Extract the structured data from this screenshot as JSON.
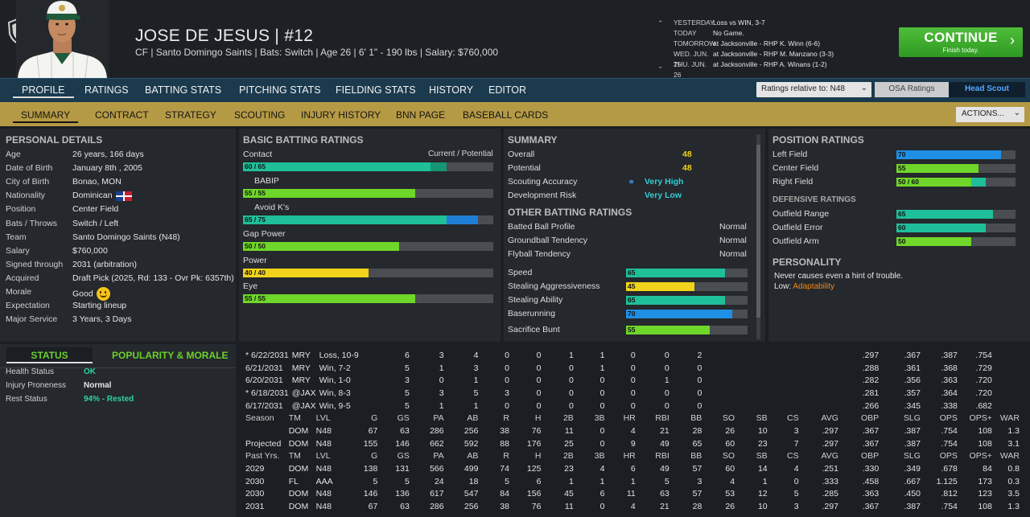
{
  "player": {
    "name": "JOSE DE JESUS",
    "sep": "|",
    "number": "#12",
    "subtitle": "CF | Santo Domingo Saints  |  Bats: Switch  |  Age 26  |  6' 1\" - 190 lbs  |  Salary: $760,000"
  },
  "schedule": [
    {
      "day": "YESTERDAY",
      "info": "Loss vs WIN, 3-7"
    },
    {
      "day": "TODAY",
      "info": "No Game."
    },
    {
      "day": "TOMORROW",
      "info": "at Jacksonville - RHP K. Winn (6-6)"
    },
    {
      "day": "WED. JUN. 25",
      "info": "at Jacksonville - RHP M. Manzano (3-3)"
    },
    {
      "day": "THU. JUN. 26",
      "info": "at Jacksonville - RHP A. Winans (1-2)"
    }
  ],
  "continue": {
    "label": "CONTINUE",
    "sub": "Finish today.",
    "chevron": "›"
  },
  "main_tabs": [
    "PROFILE",
    "RATINGS",
    "BATTING STATS",
    "PITCHING STATS",
    "FIELDING STATS",
    "HISTORY",
    "EDITOR"
  ],
  "ratings_select": "Ratings relative to: N48",
  "osa_button": "OSA Ratings",
  "scout_button": "Head Scout",
  "sub_tabs": [
    "SUMMARY",
    "CONTRACT",
    "STRATEGY",
    "SCOUTING",
    "INJURY HISTORY",
    "BNN PAGE",
    "BASEBALL CARDS"
  ],
  "actions_button": "ACTIONS...",
  "personal": {
    "title": "PERSONAL DETAILS",
    "rows": [
      {
        "label": "Age",
        "value": "26 years, 166 days"
      },
      {
        "label": "Date of Birth",
        "value": "January 8th , 2005"
      },
      {
        "label": "City of Birth",
        "value": "Bonao, MON"
      },
      {
        "label": "Nationality",
        "value": "Dominican"
      },
      {
        "label": "Position",
        "value": "Center Field"
      },
      {
        "label": "Bats / Throws",
        "value": "Switch / Left"
      },
      {
        "label": "Team",
        "value": "Santo Domingo Saints (N48)"
      },
      {
        "label": "Salary",
        "value": "$760,000"
      },
      {
        "label": "Signed through",
        "value": "2031 (arbitration)"
      },
      {
        "label": "Acquired",
        "value": "Draft Pick (2025, Rd: 133 - Ovr Pk: 6357th)"
      },
      {
        "label": "Morale",
        "value": "Good"
      },
      {
        "label": "Expectation",
        "value": "Starting lineup"
      },
      {
        "label": "Major Service",
        "value": "3 Years, 3 Days"
      }
    ]
  },
  "batting": {
    "title": "BASIC BATTING RATINGS",
    "col_header": "Current / Potential",
    "ratings": [
      {
        "label": "Contact",
        "text": "60 / 65",
        "current": 60,
        "potential": 65,
        "color": "#1fbf9a",
        "pcolor": "#179474",
        "indent": false
      },
      {
        "label": "BABIP",
        "text": "55 / 55",
        "current": 55,
        "potential": 55,
        "color": "#6fd62a",
        "pcolor": "#6fd62a",
        "indent": true
      },
      {
        "label": "Avoid K's",
        "text": "65 / 75",
        "current": 65,
        "potential": 75,
        "color": "#1fbf9a",
        "pcolor": "#1f7fd6",
        "indent": true
      },
      {
        "label": "Gap Power",
        "text": "50 / 50",
        "current": 50,
        "potential": 50,
        "color": "#6fd62a",
        "pcolor": "#6fd62a",
        "indent": false
      },
      {
        "label": "Power",
        "text": "40 / 40",
        "current": 40,
        "potential": 40,
        "color": "#f0d31a",
        "pcolor": "#f0d31a",
        "indent": false
      },
      {
        "label": "Eye",
        "text": "55 / 55",
        "current": 55,
        "potential": 55,
        "color": "#6fd62a",
        "pcolor": "#6fd62a",
        "indent": false
      }
    ]
  },
  "summary": {
    "title": "SUMMARY",
    "rows": [
      {
        "label": "Overall",
        "value": "48"
      },
      {
        "label": "Potential",
        "value": "48"
      },
      {
        "label": "Scouting Accuracy",
        "value": "Very High"
      },
      {
        "label": "Development Risk",
        "value": "Very Low"
      }
    ],
    "other_title": "OTHER BATTING RATINGS",
    "other": [
      {
        "label": "Batted Ball Profile",
        "value": "Normal"
      },
      {
        "label": "Groundball Tendency",
        "value": "Normal"
      },
      {
        "label": "Flyball Tendency",
        "value": "Normal"
      }
    ],
    "bars": [
      {
        "label": "Speed",
        "value": 65,
        "text": "65",
        "color": "#1fbf9a"
      },
      {
        "label": "Stealing Aggressiveness",
        "value": 45,
        "text": "45",
        "color": "#f0d31a"
      },
      {
        "label": "Stealing Ability",
        "value": 65,
        "text": "65",
        "color": "#1fbf9a"
      },
      {
        "label": "Baserunning",
        "value": 70,
        "text": "70",
        "color": "#1f8fe6"
      },
      {
        "label": "Sacrifice Bunt",
        "value": 55,
        "text": "55",
        "color": "#6fd62a"
      }
    ]
  },
  "position": {
    "title": "POSITION RATINGS",
    "bars": [
      {
        "label": "Left Field",
        "text": "70",
        "current": 70,
        "potential": 70,
        "color": "#1f8fe6",
        "pcolor": "#1f8fe6"
      },
      {
        "label": "Center Field",
        "text": "55",
        "current": 55,
        "potential": 55,
        "color": "#6fd62a",
        "pcolor": "#6fd62a"
      },
      {
        "label": "Right Field",
        "text": "50 / 60",
        "current": 50,
        "potential": 60,
        "color": "#6fd62a",
        "pcolor": "#1fbf9a"
      }
    ],
    "def_title": "DEFENSIVE RATINGS",
    "def": [
      {
        "label": "Outfield Range",
        "text": "65",
        "value": 65,
        "color": "#1fbf9a"
      },
      {
        "label": "Outfield Error",
        "text": "60",
        "value": 60,
        "color": "#1fbf9a"
      },
      {
        "label": "Outfield Arm",
        "text": "50",
        "value": 50,
        "color": "#6fd62a"
      }
    ],
    "personality_title": "PERSONALITY",
    "personality_text": "Never causes even a hint of trouble.",
    "personality_low_label": "Low:",
    "personality_low_value": "Adaptability"
  },
  "status": {
    "tab1": "STATUS",
    "tab2": "POPULARITY & MORALE",
    "rows": [
      {
        "label": "Health Status",
        "value": "OK",
        "color": "#2ed3a0"
      },
      {
        "label": "Injury Proneness",
        "value": "Normal",
        "color": "#e6e6e6"
      },
      {
        "label": "Rest Status",
        "value": "94% - Rested",
        "color": "#2ed3a0"
      }
    ]
  },
  "games": [
    [
      "* 6/22/2031",
      "MRY",
      "Loss, 10-9",
      "6",
      "3",
      "4",
      "0",
      "0",
      "1",
      "1",
      "0",
      "0",
      "2",
      ".297",
      ".367",
      ".387",
      ".754"
    ],
    [
      "6/21/2031",
      "MRY",
      "Win, 7-2",
      "5",
      "1",
      "3",
      "0",
      "0",
      "0",
      "1",
      "0",
      "0",
      "0",
      ".288",
      ".361",
      ".368",
      ".729"
    ],
    [
      "6/20/2031",
      "MRY",
      "Win, 1-0",
      "3",
      "0",
      "1",
      "0",
      "0",
      "0",
      "0",
      "0",
      "1",
      "0",
      ".282",
      ".356",
      ".363",
      ".720"
    ],
    [
      "* 6/18/2031",
      "@JAX",
      "Win, 8-3",
      "5",
      "3",
      "5",
      "3",
      "0",
      "0",
      "0",
      "0",
      "0",
      "0",
      ".281",
      ".357",
      ".364",
      ".720"
    ],
    [
      "6/17/2031",
      "@JAX",
      "Win, 9-5",
      "5",
      "1",
      "1",
      "0",
      "0",
      "0",
      "0",
      "0",
      "0",
      "0",
      ".266",
      ".345",
      ".338",
      ".682"
    ]
  ],
  "season_header": [
    "Season",
    "TM",
    "LVL",
    "G",
    "GS",
    "PA",
    "AB",
    "R",
    "H",
    "2B",
    "3B",
    "HR",
    "RBI",
    "BB",
    "SO",
    "SB",
    "CS",
    "AVG",
    "OBP",
    "SLG",
    "OPS",
    "OPS+",
    "WAR"
  ],
  "season_rows": [
    [
      "",
      "DOM",
      "N48",
      "67",
      "63",
      "286",
      "256",
      "38",
      "76",
      "11",
      "0",
      "4",
      "21",
      "28",
      "26",
      "10",
      "3",
      ".297",
      ".367",
      ".387",
      ".754",
      "108",
      "1.3"
    ],
    [
      "Projected",
      "DOM",
      "N48",
      "155",
      "146",
      "662",
      "592",
      "88",
      "176",
      "25",
      "0",
      "9",
      "49",
      "65",
      "60",
      "23",
      "7",
      ".297",
      ".367",
      ".387",
      ".754",
      "108",
      "3.1"
    ]
  ],
  "past_header": [
    "Past Yrs.",
    "TM",
    "LVL",
    "G",
    "GS",
    "PA",
    "AB",
    "R",
    "H",
    "2B",
    "3B",
    "HR",
    "RBI",
    "BB",
    "SO",
    "SB",
    "CS",
    "AVG",
    "OBP",
    "SLG",
    "OPS",
    "OPS+",
    "WAR"
  ],
  "past_rows": [
    [
      "2029",
      "DOM",
      "N48",
      "138",
      "131",
      "566",
      "499",
      "74",
      "125",
      "23",
      "4",
      "6",
      "49",
      "57",
      "60",
      "14",
      "4",
      ".251",
      ".330",
      ".349",
      ".678",
      "84",
      "0.8"
    ],
    [
      "2030",
      "FL",
      "AAA",
      "5",
      "5",
      "24",
      "18",
      "5",
      "6",
      "1",
      "1",
      "1",
      "5",
      "3",
      "4",
      "1",
      "0",
      ".333",
      ".458",
      ".667",
      "1.125",
      "173",
      "0.3"
    ],
    [
      "2030",
      "DOM",
      "N48",
      "146",
      "136",
      "617",
      "547",
      "84",
      "156",
      "45",
      "6",
      "11",
      "63",
      "57",
      "53",
      "12",
      "5",
      ".285",
      ".363",
      ".450",
      ".812",
      "123",
      "3.5"
    ],
    [
      "2031",
      "DOM",
      "N48",
      "67",
      "63",
      "286",
      "256",
      "38",
      "76",
      "11",
      "0",
      "4",
      "21",
      "28",
      "26",
      "10",
      "3",
      ".297",
      ".367",
      ".387",
      ".754",
      "108",
      "1.3"
    ]
  ]
}
